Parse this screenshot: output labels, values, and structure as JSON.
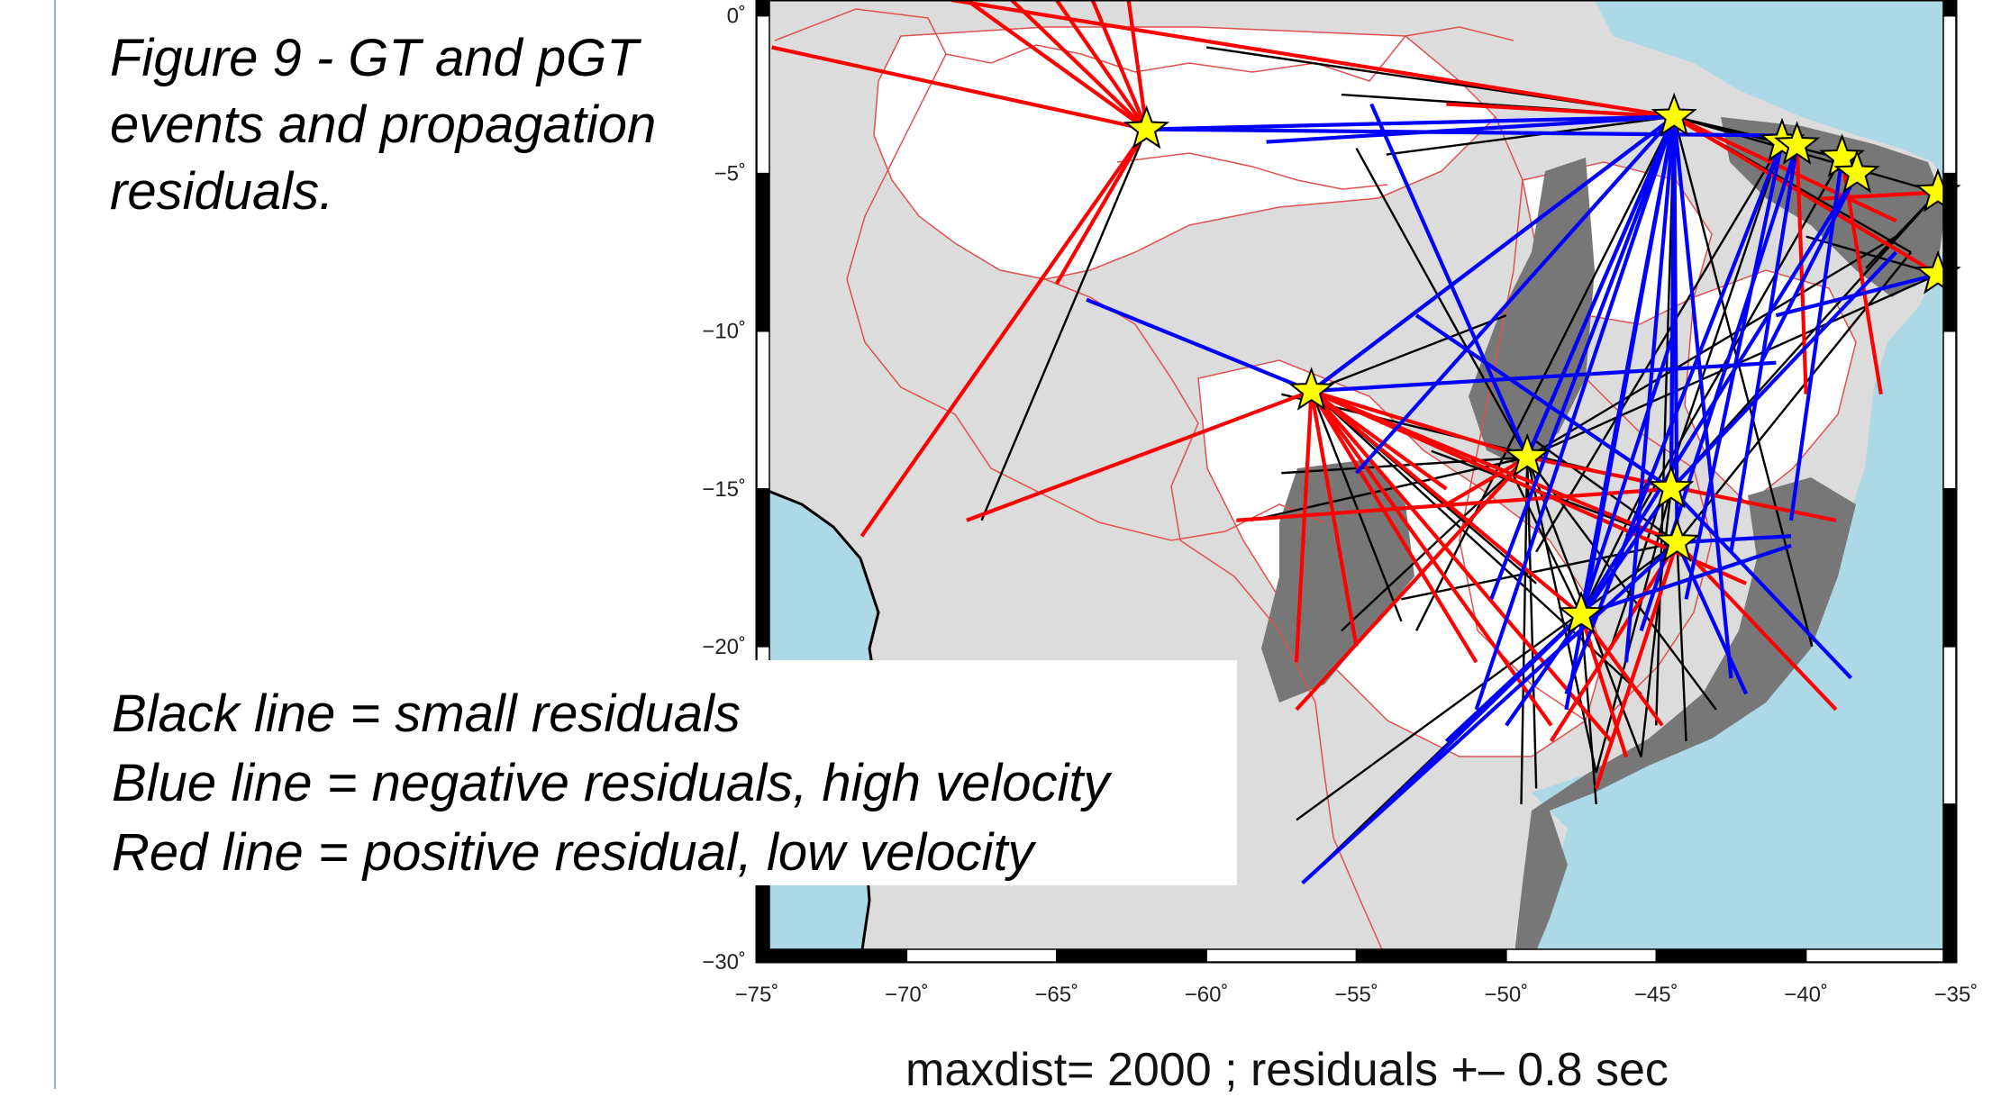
{
  "caption": {
    "lines": [
      "Figure 9 - GT and pGT",
      "events and propagation",
      "residuals."
    ]
  },
  "legend": {
    "lines": [
      "Black line = small residuals",
      "Blue line = negative residuals, high velocity",
      "Red line = positive residual, low velocity"
    ]
  },
  "footer": "maxdist= 2000 ;   residuals +– 0.8 sec",
  "map": {
    "lon_range": [
      -75,
      -35
    ],
    "lat_range": [
      -30,
      0.5
    ],
    "lon_ticks": [
      -75,
      -70,
      -65,
      -60,
      -55,
      -50,
      -45,
      -40,
      -35
    ],
    "lat_ticks": [
      0,
      -5,
      -10,
      -15,
      -20,
      -30
    ],
    "colors": {
      "ocean": "#add8e6",
      "land": "#dcdcdc",
      "shield": "#777777",
      "basin": "#ffffff",
      "border": "#e05050",
      "small_residual": "#000000",
      "negative_residual": "#0000ff",
      "positive_residual": "#ff0000",
      "star": "#ffff00"
    },
    "stations": [
      {
        "lon": -62.0,
        "lat": -3.6
      },
      {
        "lon": -44.4,
        "lat": -3.2
      },
      {
        "lon": -40.8,
        "lat": -4.0
      },
      {
        "lon": -40.3,
        "lat": -4.1
      },
      {
        "lon": -38.8,
        "lat": -4.5
      },
      {
        "lon": -38.3,
        "lat": -5.0
      },
      {
        "lon": -35.6,
        "lat": -5.6
      },
      {
        "lon": -35.6,
        "lat": -8.2
      },
      {
        "lon": -56.5,
        "lat": -11.9
      },
      {
        "lon": -49.3,
        "lat": -14.0
      },
      {
        "lon": -44.5,
        "lat": -15.0
      },
      {
        "lon": -44.3,
        "lat": -16.7
      },
      {
        "lon": -47.5,
        "lat": -19.0
      }
    ],
    "paths": [
      {
        "from": 0,
        "to": [
          -68.0,
          0.5
        ],
        "type": "positive"
      },
      {
        "from": 0,
        "to": [
          -66.5,
          0.5
        ],
        "type": "positive"
      },
      {
        "from": 0,
        "to": [
          -65.0,
          0.5
        ],
        "type": "positive"
      },
      {
        "from": 0,
        "to": [
          -63.8,
          0.5
        ],
        "type": "positive"
      },
      {
        "from": 0,
        "to": [
          -62.6,
          0.5
        ],
        "type": "positive"
      },
      {
        "from": 0,
        "to": [
          -74.5,
          -1.0
        ],
        "type": "positive"
      },
      {
        "from": 0,
        "to": [
          -71.5,
          -16.5
        ],
        "type": "positive"
      },
      {
        "from": 0,
        "to": [
          -65.0,
          -8.5
        ],
        "type": "positive"
      },
      {
        "from": 0,
        "to": [
          -67.5,
          -16.0
        ],
        "type": "small"
      },
      {
        "from": 0,
        "to": [
          -44.4,
          -3.2
        ],
        "type": "negative"
      },
      {
        "from": 0,
        "to": [
          -40.5,
          -3.8
        ],
        "type": "negative"
      },
      {
        "from": 1,
        "to": [
          -68.5,
          0.5
        ],
        "type": "positive"
      },
      {
        "from": 1,
        "to": [
          -55.5,
          -2.5
        ],
        "type": "small"
      },
      {
        "from": 1,
        "to": [
          -58.0,
          -4.0
        ],
        "type": "negative"
      },
      {
        "from": 1,
        "to": [
          -54.0,
          -4.4
        ],
        "type": "small"
      },
      {
        "from": 1,
        "to": [
          -60.0,
          -1.0
        ],
        "type": "small"
      },
      {
        "from": 1,
        "to": [
          -52.0,
          -2.8
        ],
        "type": "positive"
      },
      {
        "from": 1,
        "to": [
          -56.5,
          -11.9
        ],
        "type": "negative"
      },
      {
        "from": 1,
        "to": [
          -49.3,
          -14.0
        ],
        "type": "negative"
      },
      {
        "from": 1,
        "to": [
          -47.5,
          -19.0
        ],
        "type": "negative"
      },
      {
        "from": 1,
        "to": [
          -44.5,
          -15.0
        ],
        "type": "negative"
      },
      {
        "from": 1,
        "to": [
          -46.0,
          -20.5
        ],
        "type": "negative"
      },
      {
        "from": 1,
        "to": [
          -42.5,
          -21.0
        ],
        "type": "negative"
      },
      {
        "from": 1,
        "to": [
          -51.0,
          -22.0
        ],
        "type": "negative"
      },
      {
        "from": 1,
        "to": [
          -45.0,
          -22.5
        ],
        "type": "small"
      },
      {
        "from": 1,
        "to": [
          -48.0,
          -22.0
        ],
        "type": "negative"
      },
      {
        "from": 1,
        "to": [
          -53.0,
          -19.5
        ],
        "type": "small"
      },
      {
        "from": 1,
        "to": [
          -50.5,
          -18.5
        ],
        "type": "negative"
      },
      {
        "from": 1,
        "to": [
          -55.0,
          -14.5
        ],
        "type": "negative"
      },
      {
        "from": 1,
        "to": [
          -39.8,
          -20.0
        ],
        "type": "small"
      },
      {
        "from": 1,
        "to": [
          -36.5,
          -7.5
        ],
        "type": "small"
      },
      {
        "from": 1,
        "to": [
          -35.6,
          -5.6
        ],
        "type": "small"
      },
      {
        "from": 1,
        "to": [
          -38.5,
          -4.6
        ],
        "type": "small"
      },
      {
        "from": 1,
        "to": [
          -40.8,
          -4.0
        ],
        "type": "small"
      },
      {
        "from": 1,
        "to": [
          -37.0,
          -6.5
        ],
        "type": "positive"
      },
      {
        "from": 2,
        "to": [
          -48.0,
          -21.5
        ],
        "type": "negative"
      },
      {
        "from": 2,
        "to": [
          -44.0,
          -18.5
        ],
        "type": "negative"
      },
      {
        "from": 2,
        "to": [
          -49.0,
          -17.0
        ],
        "type": "small"
      },
      {
        "from": 2,
        "to": [
          -46.5,
          -20.0
        ],
        "type": "small"
      },
      {
        "from": 3,
        "to": [
          -42.5,
          -17.0
        ],
        "type": "negative"
      },
      {
        "from": 3,
        "to": [
          -45.5,
          -19.5
        ],
        "type": "negative"
      },
      {
        "from": 3,
        "to": [
          -40.0,
          -12.0
        ],
        "type": "positive"
      },
      {
        "from": 4,
        "to": [
          -40.5,
          -16.0
        ],
        "type": "negative"
      },
      {
        "from": 4,
        "to": [
          -46.0,
          -16.5
        ],
        "type": "small"
      },
      {
        "from": 4,
        "to": [
          -37.5,
          -12.0
        ],
        "type": "positive"
      },
      {
        "from": 5,
        "to": [
          -47.5,
          -19.0
        ],
        "type": "negative"
      },
      {
        "from": 5,
        "to": [
          -41.5,
          -11.0
        ],
        "type": "negative"
      },
      {
        "from": 6,
        "to": [
          -39.5,
          -5.8
        ],
        "type": "positive"
      },
      {
        "from": 6,
        "to": [
          -44.5,
          -15.0
        ],
        "type": "small"
      },
      {
        "from": 6,
        "to": [
          -38.0,
          -8.0
        ],
        "type": "small"
      },
      {
        "from": 7,
        "to": [
          -44.4,
          -3.2
        ],
        "type": "positive"
      },
      {
        "from": 7,
        "to": [
          -41.0,
          -9.5
        ],
        "type": "negative"
      },
      {
        "from": 7,
        "to": [
          -49.3,
          -14.0
        ],
        "type": "small"
      },
      {
        "from": 7,
        "to": [
          -40.0,
          -7.0
        ],
        "type": "small"
      },
      {
        "from": 8,
        "to": [
          -68.0,
          -16.0
        ],
        "type": "positive"
      },
      {
        "from": 8,
        "to": [
          -64.0,
          -9.0
        ],
        "type": "negative"
      },
      {
        "from": 8,
        "to": [
          -44.4,
          -3.2
        ],
        "type": "negative"
      },
      {
        "from": 8,
        "to": [
          -50.0,
          -9.5
        ],
        "type": "small"
      },
      {
        "from": 8,
        "to": [
          -49.3,
          -14.0
        ],
        "type": "positive"
      },
      {
        "from": 8,
        "to": [
          -47.5,
          -19.0
        ],
        "type": "positive"
      },
      {
        "from": 8,
        "to": [
          -44.3,
          -16.7
        ],
        "type": "positive"
      },
      {
        "from": 8,
        "to": [
          -51.0,
          -20.5
        ],
        "type": "positive"
      },
      {
        "from": 8,
        "to": [
          -48.5,
          -22.5
        ],
        "type": "positive"
      },
      {
        "from": 8,
        "to": [
          -46.5,
          -23.0
        ],
        "type": "positive"
      },
      {
        "from": 8,
        "to": [
          -55.0,
          -20.0
        ],
        "type": "positive"
      },
      {
        "from": 8,
        "to": [
          -57.0,
          -20.5
        ],
        "type": "positive"
      },
      {
        "from": 8,
        "to": [
          -52.0,
          -15.0
        ],
        "type": "positive"
      },
      {
        "from": 8,
        "to": [
          -42.0,
          -18.0
        ],
        "type": "positive"
      },
      {
        "from": 8,
        "to": [
          -45.5,
          -21.5
        ],
        "type": "small"
      },
      {
        "from": 8,
        "to": [
          -53.5,
          -19.2
        ],
        "type": "small"
      },
      {
        "from": 8,
        "to": [
          -49.0,
          -18.0
        ],
        "type": "small"
      },
      {
        "from": 8,
        "to": [
          -41.0,
          -11.0
        ],
        "type": "negative"
      },
      {
        "from": 9,
        "to": [
          -55.0,
          -4.2
        ],
        "type": "small"
      },
      {
        "from": 9,
        "to": [
          -57.0,
          -22.0
        ],
        "type": "positive"
      },
      {
        "from": 9,
        "to": [
          -55.5,
          -19.5
        ],
        "type": "small"
      },
      {
        "from": 9,
        "to": [
          -44.4,
          -3.2
        ],
        "type": "negative"
      },
      {
        "from": 9,
        "to": [
          -54.5,
          -2.8
        ],
        "type": "negative"
      },
      {
        "from": 9,
        "to": [
          -47.0,
          -24.0
        ],
        "type": "small"
      },
      {
        "from": 9,
        "to": [
          -49.0,
          -24.5
        ],
        "type": "small"
      },
      {
        "from": 9,
        "to": [
          -49.5,
          -25.0
        ],
        "type": "small"
      },
      {
        "from": 9,
        "to": [
          -45.5,
          -23.5
        ],
        "type": "small"
      },
      {
        "from": 9,
        "to": [
          -43.0,
          -22.0
        ],
        "type": "small"
      },
      {
        "from": 9,
        "to": [
          -57.5,
          -14.5
        ],
        "type": "small"
      },
      {
        "from": 9,
        "to": [
          -39.0,
          -16.0
        ],
        "type": "positive"
      },
      {
        "from": 9,
        "to": [
          -52.0,
          -15.5
        ],
        "type": "positive"
      },
      {
        "from": 9,
        "to": [
          -58.5,
          -16.0
        ],
        "type": "small"
      },
      {
        "from": 9,
        "to": [
          -37.0,
          -7.0
        ],
        "type": "small"
      },
      {
        "from": 10,
        "to": [
          -57.5,
          -12.0
        ],
        "type": "small"
      },
      {
        "from": 10,
        "to": [
          -59.0,
          -16.0
        ],
        "type": "positive"
      },
      {
        "from": 10,
        "to": [
          -44.4,
          -3.2
        ],
        "type": "negative"
      },
      {
        "from": 10,
        "to": [
          -47.0,
          -24.0
        ],
        "type": "small"
      },
      {
        "from": 10,
        "to": [
          -45.5,
          -23.5
        ],
        "type": "small"
      },
      {
        "from": 10,
        "to": [
          -50.0,
          -22.5
        ],
        "type": "negative"
      },
      {
        "from": 10,
        "to": [
          -53.0,
          -9.5
        ],
        "type": "negative"
      },
      {
        "from": 10,
        "to": [
          -37.0,
          -7.5
        ],
        "type": "negative"
      },
      {
        "from": 10,
        "to": [
          -38.5,
          -21.0
        ],
        "type": "negative"
      },
      {
        "from": 11,
        "to": [
          -53.5,
          -18.5
        ],
        "type": "small"
      },
      {
        "from": 11,
        "to": [
          -57.0,
          -25.5
        ],
        "type": "small"
      },
      {
        "from": 11,
        "to": [
          -56.8,
          -27.5
        ],
        "type": "negative"
      },
      {
        "from": 11,
        "to": [
          -44.4,
          -3.2
        ],
        "type": "negative"
      },
      {
        "from": 11,
        "to": [
          -47.0,
          -24.5
        ],
        "type": "positive"
      },
      {
        "from": 11,
        "to": [
          -48.5,
          -23.0
        ],
        "type": "positive"
      },
      {
        "from": 11,
        "to": [
          -44.0,
          -23.0
        ],
        "type": "small"
      },
      {
        "from": 11,
        "to": [
          -42.0,
          -21.5
        ],
        "type": "negative"
      },
      {
        "from": 11,
        "to": [
          -40.5,
          -16.5
        ],
        "type": "negative"
      },
      {
        "from": 11,
        "to": [
          -39.0,
          -22.0
        ],
        "type": "positive"
      },
      {
        "from": 11,
        "to": [
          -36.5,
          -7.5
        ],
        "type": "small"
      },
      {
        "from": 11,
        "to": [
          -52.5,
          -13.8
        ],
        "type": "small"
      },
      {
        "from": 11,
        "to": [
          -49.0,
          -13.5
        ],
        "type": "small"
      },
      {
        "from": 12,
        "to": [
          -56.8,
          -27.5
        ],
        "type": "small"
      },
      {
        "from": 12,
        "to": [
          -54.5,
          -25.5
        ],
        "type": "negative"
      },
      {
        "from": 12,
        "to": [
          -52.0,
          -23.0
        ],
        "type": "negative"
      },
      {
        "from": 12,
        "to": [
          -44.4,
          -3.2
        ],
        "type": "negative"
      },
      {
        "from": 12,
        "to": [
          -46.0,
          -23.5
        ],
        "type": "positive"
      },
      {
        "from": 12,
        "to": [
          -47.0,
          -25.0
        ],
        "type": "small"
      },
      {
        "from": 12,
        "to": [
          -44.8,
          -22.5
        ],
        "type": "positive"
      },
      {
        "from": 12,
        "to": [
          -40.5,
          -16.8
        ],
        "type": "negative"
      },
      {
        "from": 12,
        "to": [
          -49.8,
          -14.5
        ],
        "type": "small"
      },
      {
        "from": 12,
        "to": [
          -45.0,
          -14.2
        ],
        "type": "small"
      },
      {
        "from": 12,
        "to": [
          -44.4,
          -10.0
        ],
        "type": "negative"
      }
    ]
  }
}
